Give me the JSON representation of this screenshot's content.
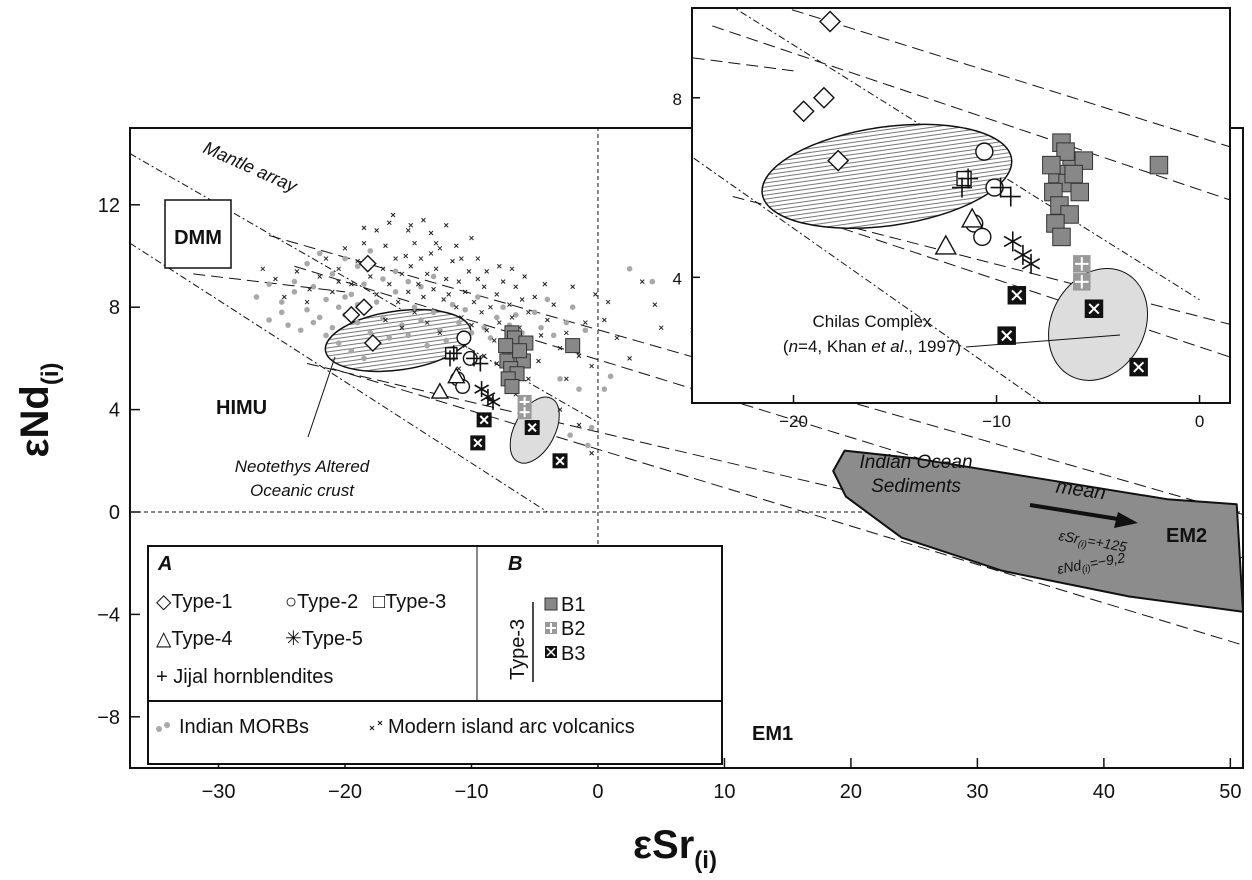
{
  "chart_data": {
    "type": "scatter",
    "xlabel": {
      "main": "εSr",
      "sub": "(i)"
    },
    "ylabel": {
      "main": "εNd",
      "sub": "(i)"
    },
    "xlim": [
      -37,
      51
    ],
    "ylim": [
      -10,
      15
    ],
    "xticks": [
      -30,
      -20,
      -10,
      0,
      10,
      20,
      30,
      40,
      50
    ],
    "xtick_labels": [
      "−30",
      "−20",
      "−10",
      "0",
      "10",
      "20",
      "30",
      "40",
      "50"
    ],
    "yticks": [
      -8,
      -4,
      0,
      4,
      8,
      12
    ],
    "ytick_labels": [
      "−8",
      "−4",
      "0",
      "4",
      "8",
      "12"
    ],
    "grid": false,
    "annotations": {
      "dmm": "DMM",
      "himu": "HIMU",
      "em1": "EM1",
      "em2": "EM2",
      "mantle_array": "Mantle array",
      "neotethys_line1": "Neotethys Altered",
      "neotethys_line2": "Oceanic crust",
      "ios_line1": "Indian Ocean",
      "ios_line2": "Sediments",
      "mean": "mean",
      "mean_sr_main": "εSr",
      "mean_sr_sub": "(i)",
      "mean_sr_val": "=+125",
      "mean_nd_main": "εNd",
      "mean_nd_sub": "(i)",
      "mean_nd_val": "=−9,2"
    },
    "legend": {
      "A_title": "A",
      "B_title": "B",
      "type1": "◇Type-1",
      "type2": "○Type-2",
      "type3": "□Type-3",
      "type4": "△Type-4",
      "type5": "✳Type-5",
      "jijal": "+ Jijal hornblendites",
      "type3_vertical": "Type-3",
      "b1": "B1",
      "b2": "B2",
      "b3": "B3",
      "morb": "Indian MORBs",
      "arc": "Modern island arc volcanics"
    },
    "series": [
      {
        "name": "Type-1",
        "marker": "diamond",
        "points": [
          [
            -18.2,
            9.7
          ],
          [
            -19.5,
            7.7
          ],
          [
            -18.5,
            8.0
          ],
          [
            -17.8,
            6.6
          ]
        ]
      },
      {
        "name": "Type-2",
        "marker": "circle",
        "points": [
          [
            -10.6,
            6.8
          ],
          [
            -10.1,
            6.0
          ],
          [
            -11.1,
            5.2
          ],
          [
            -10.7,
            4.9
          ]
        ]
      },
      {
        "name": "Type-3",
        "marker": "square",
        "points": [
          [
            -11.6,
            6.2
          ]
        ]
      },
      {
        "name": "Type-4",
        "marker": "triangle",
        "points": [
          [
            -12.5,
            4.7
          ],
          [
            -11.2,
            5.3
          ]
        ]
      },
      {
        "name": "Type-5",
        "marker": "asterisk",
        "points": [
          [
            -9.2,
            4.8
          ],
          [
            -8.7,
            4.5
          ],
          [
            -8.3,
            4.3
          ]
        ]
      },
      {
        "name": "Jijal hornblendites",
        "marker": "plus",
        "points": [
          [
            -11.7,
            6.0
          ],
          [
            -11.4,
            6.2
          ],
          [
            -9.8,
            6.0
          ],
          [
            -9.3,
            5.8
          ]
        ]
      },
      {
        "name": "B1",
        "marker": "filled-square",
        "points": [
          [
            -6.8,
            7.0
          ],
          [
            -6.3,
            6.6
          ],
          [
            -7.0,
            6.3
          ],
          [
            -6.5,
            6.1
          ],
          [
            -7.2,
            5.9
          ],
          [
            -5.9,
            5.9
          ],
          [
            -6.9,
            5.6
          ],
          [
            -6.4,
            5.4
          ],
          [
            -7.1,
            5.2
          ],
          [
            -6.8,
            4.9
          ],
          [
            -6.6,
            6.8
          ],
          [
            -5.7,
            6.6
          ],
          [
            -6.2,
            6.3
          ],
          [
            -7.3,
            6.5
          ],
          [
            -2.0,
            6.5
          ]
        ]
      },
      {
        "name": "B2",
        "marker": "plus-square",
        "points": [
          [
            -5.8,
            4.3
          ],
          [
            -5.8,
            3.9
          ]
        ]
      },
      {
        "name": "B3",
        "marker": "x-square",
        "points": [
          [
            -9.0,
            3.6
          ],
          [
            -9.5,
            2.7
          ],
          [
            -5.2,
            3.3
          ],
          [
            -3.0,
            2.0
          ]
        ]
      },
      {
        "name": "Indian MORBs",
        "marker": "gray-dot",
        "points": [
          [
            -27,
            8.4
          ],
          [
            -26,
            8.9
          ],
          [
            -25,
            8.2
          ],
          [
            -24,
            8.6
          ],
          [
            -23,
            7.9
          ],
          [
            -22.5,
            8.8
          ],
          [
            -22,
            7.6
          ],
          [
            -21.5,
            8.3
          ],
          [
            -21,
            7.2
          ],
          [
            -20.5,
            8.0
          ],
          [
            -20,
            7.7
          ],
          [
            -19.5,
            8.5
          ],
          [
            -19,
            7.4
          ],
          [
            -18.5,
            8.9
          ],
          [
            -18,
            7.0
          ],
          [
            -17.5,
            8.2
          ],
          [
            -17,
            7.6
          ],
          [
            -16.5,
            6.8
          ],
          [
            -16,
            8.6
          ],
          [
            -15.5,
            7.3
          ],
          [
            -15,
            6.9
          ],
          [
            -14.5,
            8.0
          ],
          [
            -14,
            7.5
          ],
          [
            -13.5,
            6.5
          ],
          [
            -13,
            7.8
          ],
          [
            -12.5,
            7.1
          ],
          [
            -12,
            6.7
          ],
          [
            -11.5,
            8.1
          ],
          [
            -11,
            7.4
          ],
          [
            -10.5,
            7.9
          ],
          [
            -10,
            7.0
          ],
          [
            -9.5,
            8.4
          ],
          [
            -9,
            7.2
          ],
          [
            -8.5,
            6.8
          ],
          [
            -8,
            7.6
          ],
          [
            -7.5,
            8.0
          ],
          [
            -7,
            7.3
          ],
          [
            -6.5,
            7.7
          ],
          [
            -6,
            7.0
          ],
          [
            -5.5,
            6.6
          ],
          [
            -5,
            7.8
          ],
          [
            -4.5,
            7.2
          ],
          [
            -4,
            8.3
          ],
          [
            -3.5,
            6.9
          ],
          [
            -3,
            5.2
          ],
          [
            -2.5,
            7.4
          ],
          [
            -2,
            8.0
          ],
          [
            -1.5,
            4.8
          ],
          [
            -1,
            7.1
          ],
          [
            -0.5,
            3.3
          ],
          [
            0.5,
            4.8
          ],
          [
            1.0,
            5.3
          ],
          [
            2.5,
            9.5
          ],
          [
            -24,
            9.0
          ],
          [
            -23,
            9.7
          ],
          [
            -22,
            10.1
          ],
          [
            -21,
            9.3
          ],
          [
            -20,
            9.9
          ],
          [
            -19,
            9.6
          ],
          [
            -18,
            10.2
          ],
          [
            -26,
            7.5
          ],
          [
            -25,
            7.8
          ],
          [
            -24.5,
            7.3
          ],
          [
            -23.5,
            7.1
          ],
          [
            -22.5,
            7.4
          ],
          [
            -21.5,
            6.9
          ],
          [
            -20.5,
            6.6
          ],
          [
            -19.5,
            6.3
          ],
          [
            -18.5,
            6.0
          ],
          [
            -20,
            8.4
          ],
          [
            -19,
            8.1
          ],
          [
            -17,
            9.1
          ],
          [
            -16,
            9.4
          ],
          [
            -15,
            9.0
          ],
          [
            -14,
            8.8
          ],
          [
            -13,
            9.2
          ],
          [
            4.3,
            9.0
          ],
          [
            -2.2,
            3.0
          ],
          [
            -0.8,
            2.6
          ]
        ]
      },
      {
        "name": "Modern island arc volcanics",
        "marker": "tiny-x",
        "points": [
          [
            -26.5,
            9.5
          ],
          [
            -25.5,
            9.1
          ],
          [
            -24.8,
            8.4
          ],
          [
            -23.8,
            9.4
          ],
          [
            -22.8,
            8.7
          ],
          [
            -22,
            9.2
          ],
          [
            -21.5,
            9.9
          ],
          [
            -21,
            8.6
          ],
          [
            -20.5,
            9.5
          ],
          [
            -20,
            10.3
          ],
          [
            -19.5,
            8.9
          ],
          [
            -19,
            9.8
          ],
          [
            -18.5,
            10.5
          ],
          [
            -18,
            9.2
          ],
          [
            -17.5,
            8.5
          ],
          [
            -17,
            9.5
          ],
          [
            -16.8,
            10.4
          ],
          [
            -16.5,
            8.9
          ],
          [
            -16,
            9.9
          ],
          [
            -15.8,
            8.2
          ],
          [
            -15.5,
            9.3
          ],
          [
            -15.2,
            10.0
          ],
          [
            -15,
            8.6
          ],
          [
            -14.8,
            9.6
          ],
          [
            -14.5,
            10.5
          ],
          [
            -14.2,
            8.9
          ],
          [
            -14,
            9.9
          ],
          [
            -13.8,
            8.4
          ],
          [
            -13.5,
            9.3
          ],
          [
            -13.2,
            10.1
          ],
          [
            -13,
            8.7
          ],
          [
            -12.8,
            9.5
          ],
          [
            -12.5,
            10.3
          ],
          [
            -12.2,
            8.3
          ],
          [
            -12,
            9.1
          ],
          [
            -11.8,
            8.5
          ],
          [
            -11.5,
            9.8
          ],
          [
            -11.2,
            8.0
          ],
          [
            -11,
            9.0
          ],
          [
            -10.8,
            7.6
          ],
          [
            -10.5,
            8.6
          ],
          [
            -10.2,
            9.4
          ],
          [
            -10,
            7.3
          ],
          [
            -9.8,
            8.2
          ],
          [
            -9.5,
            9.1
          ],
          [
            -9.2,
            7.8
          ],
          [
            -9,
            8.8
          ],
          [
            -8.8,
            7.1
          ],
          [
            -8.5,
            8.0
          ],
          [
            -8.2,
            6.7
          ],
          [
            -8,
            8.5
          ],
          [
            -7.8,
            7.4
          ],
          [
            -7.5,
            9.0
          ],
          [
            -7.2,
            6.9
          ],
          [
            -7,
            8.1
          ],
          [
            -6.8,
            7.6
          ],
          [
            -6.5,
            8.8
          ],
          [
            -6.2,
            7.2
          ],
          [
            -6,
            8.3
          ],
          [
            -5.5,
            7.8
          ],
          [
            -5,
            8.4
          ],
          [
            -4.5,
            6.9
          ],
          [
            -4,
            7.5
          ],
          [
            -3.5,
            8.1
          ],
          [
            -3,
            6.4
          ],
          [
            -2.5,
            7.0
          ],
          [
            -2,
            8.8
          ],
          [
            -1.5,
            6.1
          ],
          [
            -1,
            7.4
          ],
          [
            -0.5,
            5.7
          ],
          [
            -7.8,
            9.6
          ],
          [
            -9.5,
            9.9
          ],
          [
            -11.2,
            10.4
          ],
          [
            -13.2,
            10.9
          ],
          [
            -15,
            11.0
          ],
          [
            -16.5,
            11.3
          ],
          [
            -5.8,
            9.2
          ],
          [
            -4.2,
            8.9
          ],
          [
            -13.5,
            7.4
          ],
          [
            -14.5,
            7.8
          ],
          [
            -12.5,
            7.0
          ],
          [
            -10.5,
            6.5
          ],
          [
            -9,
            6.1
          ],
          [
            -8,
            5.8
          ],
          [
            -11,
            5.6
          ],
          [
            -8.5,
            4.4
          ],
          [
            -7.5,
            5.1
          ],
          [
            -6.5,
            4.6
          ],
          [
            -5.5,
            5.2
          ],
          [
            -3,
            4.0
          ],
          [
            -1.5,
            3.4
          ],
          [
            -0.5,
            2.3
          ],
          [
            0.5,
            7.5
          ],
          [
            1.5,
            6.8
          ],
          [
            2.5,
            6.0
          ],
          [
            4.5,
            8.1
          ],
          [
            5.0,
            7.2
          ],
          [
            -0.2,
            8.5
          ],
          [
            0.8,
            8.2
          ],
          [
            3.5,
            9.0
          ],
          [
            -17.5,
            11.0
          ],
          [
            -16.2,
            11.6
          ],
          [
            -14.8,
            11.2
          ],
          [
            -12.8,
            10.5
          ],
          [
            -10.8,
            9.9
          ],
          [
            -8.8,
            9.4
          ],
          [
            -6.8,
            9.5
          ],
          [
            7.5,
            7.1
          ],
          [
            -13.8,
            11.4
          ],
          [
            -18.5,
            11.1
          ],
          [
            -12,
            11.2
          ],
          [
            -10,
            10.7
          ],
          [
            -2.5,
            5.2
          ],
          [
            -4.7,
            5.9
          ],
          [
            -15.5,
            7.2
          ],
          [
            -16.8,
            7.5
          ],
          [
            -20.5,
            9.0
          ],
          [
            -23,
            8.2
          ]
        ]
      }
    ]
  },
  "inset": {
    "xlim": [
      -25,
      1.5
    ],
    "ylim": [
      1.2,
      10.0
    ],
    "xticks": [
      -20,
      -10,
      0
    ],
    "xtick_labels": [
      "−20",
      "−10",
      "0"
    ],
    "yticks": [
      4,
      8
    ],
    "ytick_labels": [
      "4",
      "8"
    ],
    "chilas_line1": "Chilas Complex",
    "chilas_line2_pre": "(",
    "chilas_line2_n": "n",
    "chilas_line2_mid": "=4, Khan ",
    "chilas_line2_etal": "et al",
    "chilas_line2_post": "., 1997)"
  }
}
